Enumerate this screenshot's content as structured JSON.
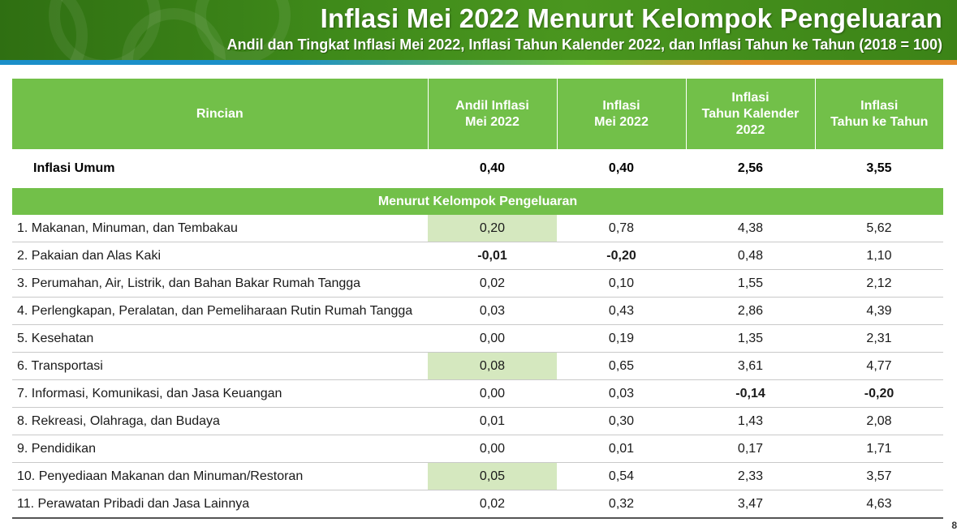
{
  "header": {
    "title": "Inflasi Mei 2022 Menurut Kelompok Pengeluaran",
    "subtitle": "Andil dan Tingkat Inflasi Mei 2022, Inflasi Tahun Kalender 2022, dan Inflasi Tahun ke Tahun (2018 = 100)"
  },
  "table": {
    "columns": {
      "rincian": "Rincian",
      "andil_l1": "Andil Inflasi",
      "andil_l2": "Mei 2022",
      "inflasi_l1": "Inflasi",
      "inflasi_l2": "Mei 2022",
      "kalender_l1": "Inflasi",
      "kalender_l2": "Tahun Kalender",
      "kalender_l3": "2022",
      "yoy_l1": "Inflasi",
      "yoy_l2": "Tahun ke Tahun"
    },
    "umum": {
      "label": "Inflasi Umum",
      "andil": "0,40",
      "inflasi": "0,40",
      "kalender": "2,56",
      "yoy": "3,55"
    },
    "section_label": "Menurut Kelompok Pengeluaran",
    "rows": [
      {
        "label": "1.  Makanan, Minuman, dan Tembakau",
        "andil": "0,20",
        "inflasi": "0,78",
        "kalender": "4,38",
        "yoy": "5,62"
      },
      {
        "label": "2.  Pakaian dan Alas Kaki",
        "andil": "-0,01",
        "inflasi": "-0,20",
        "kalender": "0,48",
        "yoy": "1,10"
      },
      {
        "label": "3.  Perumahan, Air, Listrik, dan Bahan Bakar Rumah Tangga",
        "andil": "0,02",
        "inflasi": "0,10",
        "kalender": "1,55",
        "yoy": "2,12"
      },
      {
        "label": "4.  Perlengkapan, Peralatan, dan Pemeliharaan Rutin Rumah Tangga",
        "andil": "0,03",
        "inflasi": "0,43",
        "kalender": "2,86",
        "yoy": "4,39"
      },
      {
        "label": "5.  Kesehatan",
        "andil": "0,00",
        "inflasi": "0,19",
        "kalender": "1,35",
        "yoy": "2,31"
      },
      {
        "label": "6.  Transportasi",
        "andil": "0,08",
        "inflasi": "0,65",
        "kalender": "3,61",
        "yoy": "4,77"
      },
      {
        "label": "7.  Informasi, Komunikasi, dan Jasa Keuangan",
        "andil": "0,00",
        "inflasi": "0,03",
        "kalender": "-0,14",
        "yoy": "-0,20"
      },
      {
        "label": "8.  Rekreasi, Olahraga, dan Budaya",
        "andil": "0,01",
        "inflasi": "0,30",
        "kalender": "1,43",
        "yoy": "2,08"
      },
      {
        "label": "9.  Pendidikan",
        "andil": "0,00",
        "inflasi": "0,01",
        "kalender": "0,17",
        "yoy": "1,71"
      },
      {
        "label": "10. Penyediaan Makanan dan Minuman/Restoran",
        "andil": "0,05",
        "inflasi": "0,54",
        "kalender": "2,33",
        "yoy": "3,57"
      },
      {
        "label": "11. Perawatan Pribadi dan Jasa Lainnya",
        "andil": "0,02",
        "inflasi": "0,32",
        "kalender": "3,47",
        "yoy": "4,63"
      }
    ]
  },
  "colors": {
    "header_green": "#72c049",
    "banner_green": "#3f8a1a",
    "highlight_cell": "#d5e8bf",
    "negative_text": "#a31b1b"
  },
  "page_number": "8"
}
